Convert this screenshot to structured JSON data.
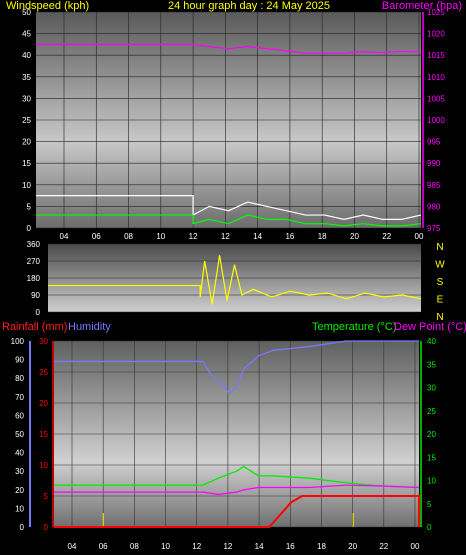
{
  "header": {
    "left_title": "Windspeed (kph)",
    "center_title": "24 hour graph day : 24 May 2025",
    "right_title": "Barometer (hpa)"
  },
  "compass": [
    "N",
    "W",
    "S",
    "E",
    "N"
  ],
  "bottom_header": {
    "rain": "Rainfall (mm)",
    "humidity": "Humidity",
    "temperature": "Temperature (°C)",
    "dewpoint": "Dew Point (°C)"
  },
  "colors": {
    "wind_avg": "#ffffff",
    "wind_gust": "#00ff00",
    "barometer": "#ff00ff",
    "direction": "#ffff00",
    "humidity": "#7878ff",
    "temperature": "#00ee00",
    "dewpoint": "#ff00ff",
    "rain": "#ff0000",
    "rain_rate": "#dddd00"
  },
  "chart_data": [
    {
      "type": "line",
      "name": "wind-barometer",
      "x_ticks": [
        "04",
        "06",
        "08",
        "10",
        "12",
        "12",
        "14",
        "16",
        "18",
        "20",
        "22",
        "00"
      ],
      "y_left_ticks": [
        0,
        5,
        10,
        15,
        20,
        25,
        30,
        35,
        40,
        45,
        50
      ],
      "y_left_range": [
        0,
        50
      ],
      "y_right_ticks": [
        975,
        980,
        985,
        990,
        995,
        1000,
        1005,
        1010,
        1015,
        1020,
        1025
      ],
      "y_right_range": [
        975,
        1025
      ],
      "series": [
        {
          "key": "wind_avg",
          "axis": "left",
          "x": [
            0,
            0.408,
            0.408,
            0.45,
            0.5,
            0.55,
            0.6,
            0.65,
            0.7,
            0.75,
            0.8,
            0.85,
            0.9,
            0.95,
            1.0
          ],
          "y": [
            7.5,
            7.5,
            3,
            5,
            4,
            6,
            5,
            4,
            3,
            3,
            2,
            3,
            2,
            2,
            3
          ]
        },
        {
          "key": "wind_gust",
          "axis": "left",
          "x": [
            0,
            0.408,
            0.408,
            0.45,
            0.5,
            0.55,
            0.6,
            0.65,
            0.7,
            0.75,
            0.8,
            0.85,
            0.9,
            0.95,
            1.0
          ],
          "y": [
            3,
            3,
            1,
            2,
            1,
            3,
            2,
            2,
            1,
            1,
            0.5,
            1,
            0.5,
            0.5,
            1
          ]
        },
        {
          "key": "barometer",
          "axis": "right",
          "x": [
            0,
            0.408,
            0.45,
            0.5,
            0.55,
            0.6,
            0.65,
            0.7,
            0.75,
            0.8,
            0.85,
            0.9,
            0.95,
            1.0
          ],
          "y": [
            1017.5,
            1017.5,
            1017,
            1016.5,
            1017,
            1016.5,
            1016,
            1015.5,
            1015.5,
            1015.5,
            1015.8,
            1015.6,
            1015.9,
            1015.7
          ]
        }
      ]
    },
    {
      "type": "line",
      "name": "wind-direction",
      "y_ticks": [
        0,
        90,
        180,
        270,
        360
      ],
      "y_range": [
        0,
        360
      ],
      "series": [
        {
          "key": "direction",
          "x": [
            0,
            0.408,
            0.408,
            0.42,
            0.44,
            0.46,
            0.48,
            0.5,
            0.52,
            0.55,
            0.6,
            0.65,
            0.7,
            0.75,
            0.8,
            0.85,
            0.9,
            0.95,
            1.0
          ],
          "y": [
            140,
            140,
            80,
            270,
            40,
            300,
            60,
            250,
            90,
            120,
            80,
            110,
            90,
            100,
            70,
            100,
            80,
            90,
            70
          ]
        }
      ]
    },
    {
      "type": "line",
      "name": "rain-humidity-temperature",
      "x_ticks": [
        "04",
        "06",
        "08",
        "10",
        "12",
        "12",
        "14",
        "16",
        "18",
        "20",
        "22",
        "00"
      ],
      "y_hum_ticks": [
        0,
        10,
        20,
        30,
        40,
        50,
        60,
        70,
        80,
        90,
        100
      ],
      "y_hum_range": [
        0,
        100
      ],
      "y_rain_ticks": [
        0,
        5,
        10,
        15,
        20,
        25,
        30
      ],
      "y_rain_range": [
        0,
        30
      ],
      "y_temp_ticks": [
        0,
        5,
        10,
        15,
        20,
        25,
        30,
        35,
        40
      ],
      "y_temp_range": [
        0,
        40
      ],
      "series": [
        {
          "key": "humidity",
          "axis": "hum",
          "x": [
            0,
            0.408,
            0.43,
            0.46,
            0.48,
            0.5,
            0.52,
            0.56,
            0.6,
            0.7,
            0.8,
            1.0
          ],
          "y": [
            89,
            89,
            82,
            77,
            72,
            75,
            85,
            92,
            95,
            97,
            100,
            100
          ]
        },
        {
          "key": "temperature",
          "axis": "temp",
          "x": [
            0,
            0.408,
            0.45,
            0.5,
            0.52,
            0.56,
            0.6,
            0.7,
            0.8,
            0.9,
            1.0
          ],
          "y": [
            9,
            9,
            10.5,
            12,
            13,
            11,
            11,
            10.5,
            9.5,
            8.8,
            8.5
          ]
        },
        {
          "key": "dewpoint",
          "axis": "temp",
          "x": [
            0,
            0.408,
            0.45,
            0.5,
            0.52,
            0.56,
            0.6,
            0.7,
            0.8,
            0.9,
            1.0
          ],
          "y": [
            7.5,
            7.5,
            7,
            7.5,
            8,
            8.5,
            8.5,
            8.5,
            9,
            8.8,
            8.5
          ]
        },
        {
          "key": "rain",
          "axis": "rain",
          "x": [
            0,
            0.59,
            0.62,
            0.65,
            0.68,
            1.0,
            1.0
          ],
          "y": [
            0,
            0,
            2,
            4,
            5,
            5,
            0
          ]
        }
      ],
      "rain_rate_markers": [
        0.135,
        0.82
      ]
    }
  ]
}
